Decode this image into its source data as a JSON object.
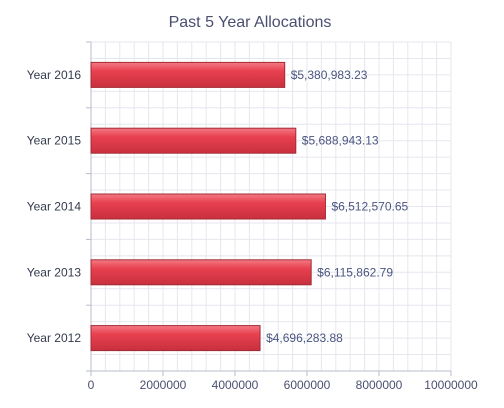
{
  "chart_data": {
    "type": "bar",
    "orientation": "horizontal",
    "title": "Past 5 Year Allocations",
    "xlabel": "",
    "ylabel": "",
    "categories": [
      "Year 2016",
      "Year 2015",
      "Year 2014",
      "Year 2013",
      "Year 2012"
    ],
    "values": [
      5380983.23,
      5688943.13,
      6512570.65,
      6115862.79,
      4696283.88
    ],
    "data_labels": [
      "$5,380,983.23",
      "$5,688,943.13",
      "$6,512,570.65",
      "$6,115,862.79",
      "$4,696,283.88"
    ],
    "xlim": [
      0,
      10000000
    ],
    "x_ticks": [
      0,
      2000000,
      4000000,
      6000000,
      8000000,
      10000000
    ],
    "x_tick_labels": [
      "0",
      "2000000",
      "4000000",
      "6000000",
      "8000000",
      "10000000"
    ],
    "grid": true,
    "bar_color": "#e8404f",
    "bar_highlight_color": "#f37a85",
    "bar_border_color": "#a52a36",
    "grid_color": "#e6e7ee",
    "axis_color": "#b8bccc"
  }
}
